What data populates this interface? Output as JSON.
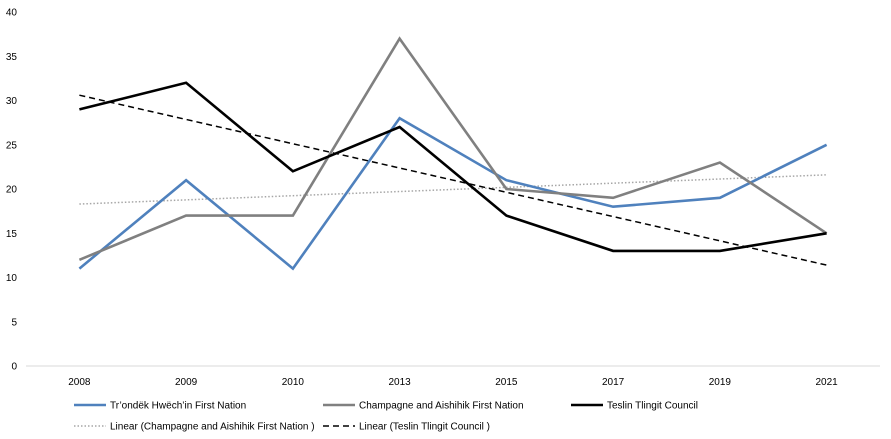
{
  "chart_data": {
    "type": "line",
    "categories": [
      "2008",
      "2009",
      "2010",
      "2013",
      "2015",
      "2017",
      "2019",
      "2021"
    ],
    "ylim": [
      0,
      40
    ],
    "yticks": [
      0,
      5,
      10,
      15,
      20,
      25,
      30,
      35,
      40
    ],
    "grid": false,
    "legend_position": "bottom",
    "series": [
      {
        "name": "Tr’ondëk Hwëch’in First Nation",
        "color": "#4f81bd",
        "style": "solid",
        "values": [
          11,
          21,
          11,
          28,
          21,
          18,
          19,
          25
        ]
      },
      {
        "name": "Champagne and Aishihik First Nation",
        "color": "#808080",
        "style": "solid",
        "values": [
          12,
          17,
          17,
          37,
          20,
          19,
          23,
          15
        ]
      },
      {
        "name": "Teslin Tlingit Council",
        "color": "#000000",
        "style": "solid",
        "values": [
          29,
          32,
          22,
          27,
          17,
          13,
          13,
          15
        ]
      }
    ],
    "trendlines": [
      {
        "name": "Linear (Champagne and Aishihik First Nation )",
        "color": "#a6a6a6",
        "style": "dotted",
        "values": [
          18.3,
          21.6
        ]
      },
      {
        "name": "Linear (Teslin Tlingit Council )",
        "color": "#000000",
        "style": "dashed",
        "values": [
          30.6,
          11.4
        ]
      }
    ]
  }
}
